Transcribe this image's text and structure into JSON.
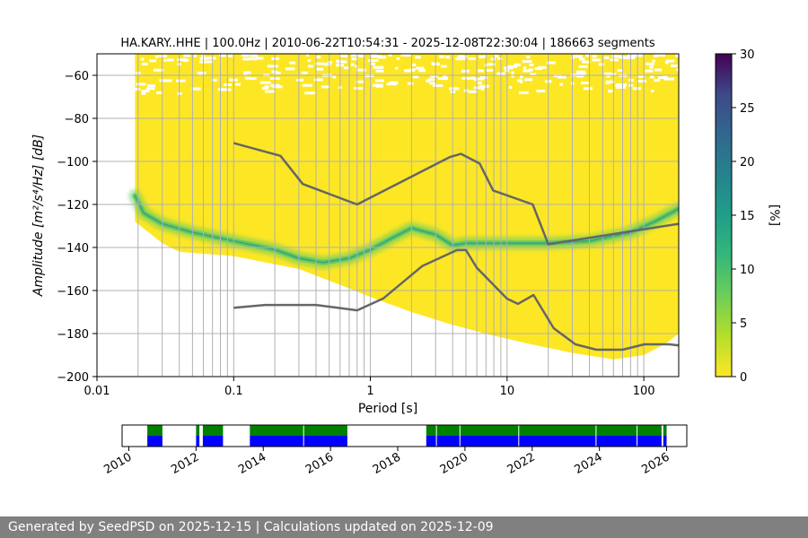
{
  "chart_data": [
    {
      "type": "heatmap",
      "title": "HA.KARY..HHE | 100.0Hz | 2010-06-22T10:54:31 - 2025-12-08T22:30:04 | 186663 segments",
      "xlabel": "Period [s]",
      "ylabel": "Amplitude [m²/s⁴/Hz] [dB]",
      "xscale": "log",
      "xlim": [
        0.01,
        180
      ],
      "ylim": [
        -200,
        -50
      ],
      "x_ticks": [
        {
          "value": 0.01,
          "label": "0.01"
        },
        {
          "value": 0.1,
          "label": "0.1"
        },
        {
          "value": 1,
          "label": "1"
        },
        {
          "value": 10,
          "label": "10"
        },
        {
          "value": 100,
          "label": "100"
        }
      ],
      "y_ticks": [
        {
          "value": -60,
          "label": "−60"
        },
        {
          "value": -80,
          "label": "−80"
        },
        {
          "value": -100,
          "label": "−100"
        },
        {
          "value": -120,
          "label": "−120"
        },
        {
          "value": -140,
          "label": "−140"
        },
        {
          "value": -160,
          "label": "−160"
        },
        {
          "value": -180,
          "label": "−180"
        },
        {
          "value": -200,
          "label": "−200"
        }
      ],
      "grid_periods": [
        0.02,
        0.03,
        0.04,
        0.05,
        0.06,
        0.07,
        0.08,
        0.09,
        0.1,
        0.2,
        0.3,
        0.4,
        0.5,
        0.6,
        0.7,
        0.8,
        0.9,
        1,
        2,
        3,
        4,
        5,
        6,
        7,
        8,
        9,
        10,
        20,
        30,
        40,
        50,
        60,
        70,
        80,
        90,
        100
      ],
      "grid_levels": [
        -60,
        -80,
        -100,
        -120,
        -140,
        -160,
        -180
      ],
      "psd_mode": {
        "period": [
          0.019,
          0.022,
          0.03,
          0.05,
          0.1,
          0.2,
          0.3,
          0.45,
          0.7,
          1.0,
          1.5,
          2.0,
          3.0,
          4.0,
          5.0,
          7.0,
          10,
          20,
          40,
          80,
          120,
          180
        ],
        "value": [
          -116,
          -124,
          -129,
          -133,
          -137,
          -141,
          -145,
          -147,
          -145,
          -141,
          -135,
          -131,
          -134,
          -139,
          -138,
          -138,
          -138,
          -138,
          -137,
          -133,
          -128,
          -122
        ]
      },
      "psd_lower_bound": {
        "period": [
          0.019,
          0.03,
          0.04,
          0.1,
          0.3,
          0.7,
          1.0,
          2.0,
          4.0,
          8.0,
          15,
          30,
          60,
          100,
          150,
          180
        ],
        "value": [
          -128,
          -138,
          -142,
          -144,
          -150,
          -159,
          -163,
          -170,
          -176,
          -181,
          -185,
          -189,
          -192,
          -190,
          -184,
          -180
        ]
      },
      "noise_model_high": {
        "period": [
          0.1,
          0.22,
          0.32,
          0.8,
          3.8,
          4.6,
          6.3,
          7.9,
          15.4,
          20,
          180
        ],
        "value": [
          -91.5,
          -97.4,
          -110.5,
          -120,
          -98,
          -96.5,
          -101,
          -113.5,
          -120,
          -138.5,
          -129
        ]
      },
      "noise_model_low": {
        "period": [
          0.1,
          0.17,
          0.4,
          0.8,
          1.24,
          2.4,
          4.3,
          5.0,
          6.0,
          10,
          12,
          15.6,
          21.9,
          31.6,
          45,
          70,
          101,
          154,
          180
        ],
        "value": [
          -168,
          -166.7,
          -166.7,
          -169.2,
          -163.7,
          -148.6,
          -141.2,
          -141.2,
          -149.4,
          -163.8,
          -166.2,
          -162.1,
          -177.5,
          -185,
          -187.5,
          -187.5,
          -185,
          -185,
          -185.5
        ]
      },
      "colorbar": {
        "label": "[%]",
        "min": 0,
        "max": 30,
        "ticks": [
          {
            "value": 0,
            "label": "0"
          },
          {
            "value": 5,
            "label": "5"
          },
          {
            "value": 10,
            "label": "10"
          },
          {
            "value": 15,
            "label": "15"
          },
          {
            "value": 20,
            "label": "20"
          },
          {
            "value": 25,
            "label": "25"
          },
          {
            "value": 30,
            "label": "30"
          }
        ]
      }
    },
    {
      "type": "timeline",
      "xlim": [
        2009.8,
        2026.6
      ],
      "x_ticks": [
        {
          "value": 2010,
          "label": "2010"
        },
        {
          "value": 2012,
          "label": "2012"
        },
        {
          "value": 2014,
          "label": "2014"
        },
        {
          "value": 2016,
          "label": "2016"
        },
        {
          "value": 2018,
          "label": "2018"
        },
        {
          "value": 2020,
          "label": "2020"
        },
        {
          "value": 2022,
          "label": "2022"
        },
        {
          "value": 2024,
          "label": "2024"
        },
        {
          "value": 2026,
          "label": "2026"
        }
      ],
      "data_available": [
        [
          2010.55,
          2011.0
        ],
        [
          2012.0,
          2012.1
        ],
        [
          2012.2,
          2012.8
        ],
        [
          2013.6,
          2016.5
        ],
        [
          2018.85,
          2025.85
        ],
        [
          2025.9,
          2026.0
        ]
      ],
      "psd_computed": [
        [
          2010.55,
          2011.0
        ],
        [
          2012.0,
          2012.1
        ],
        [
          2012.2,
          2012.8
        ],
        [
          2013.6,
          2016.5
        ],
        [
          2018.85,
          2025.85
        ],
        [
          2025.9,
          2026.0
        ]
      ],
      "gaps": [
        2011.35,
        2015.2,
        2019.15,
        2019.85,
        2021.6,
        2023.9,
        2025.12
      ]
    }
  ],
  "colors": {
    "heat_low": "#fde725",
    "heat_mid": "#5ec962",
    "heat_high": "#21918c",
    "noise_model": "#666666",
    "grid": "#b0b0b0",
    "data_available": "#008000",
    "psd_computed": "#0000ff",
    "footer_bg": "#808080"
  },
  "footer": {
    "text": "Generated by SeedPSD on 2025-12-15 | Calculations updated on 2025-12-09"
  }
}
